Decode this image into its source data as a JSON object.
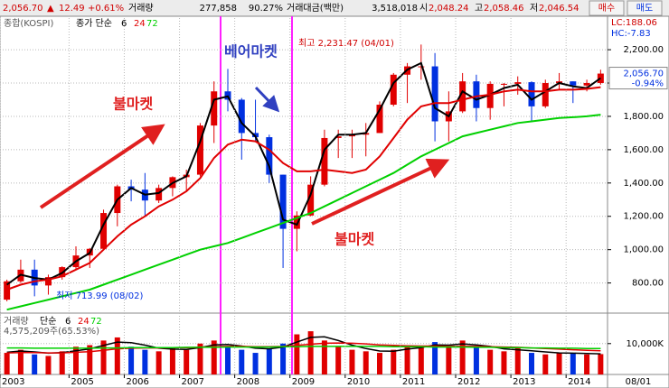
{
  "toolbar": {
    "price": "2,056.70",
    "arrow": "▲",
    "change": "12.49",
    "change_pct": "+0.61%",
    "volume_label": "거래량",
    "volume": "277,858",
    "volume_pct": "90.27%",
    "amount_label": "거래대금(백만)",
    "amount": "3,518,018",
    "open_label": "시",
    "open": "2,048.24",
    "high_label": "고",
    "high": "2,058.46",
    "low_label": "저",
    "low": "2,046.54",
    "buy": "매수",
    "sell": "매도"
  },
  "side": {
    "lc": "LC:188.06",
    "hc": "HC:-7.83",
    "last": "2,056.70",
    "last_pct": "-0.94%",
    "date": "08/01"
  },
  "annotations": {
    "bull1": "불마켓",
    "bear": "베어마켓",
    "bull2": "불마켓",
    "max": "최고 2,231.47 (04/01)",
    "min": "최저 713.99 (08/02)"
  },
  "chart_data": [
    {
      "type": "candlestick",
      "title": "종합(KOSPI)",
      "ma_label": "종가 단순",
      "up_color": "#e00000",
      "down_color": "#0030e0",
      "categories": [
        "2003",
        null,
        null,
        null,
        null,
        "2005",
        null,
        null,
        null,
        "2006",
        null,
        null,
        null,
        "2007",
        null,
        null,
        null,
        "2008",
        null,
        null,
        null,
        "2009",
        null,
        null,
        null,
        "2010",
        null,
        null,
        null,
        "2011",
        null,
        null,
        null,
        "2012",
        null,
        null,
        null,
        "2013",
        null,
        null,
        null,
        "2014",
        null,
        null
      ],
      "open": [
        700,
        810,
        880,
        785,
        835,
        895,
        965,
        1005,
        1220,
        1380,
        1360,
        1295,
        1370,
        1435,
        1450,
        1745,
        1950,
        1900,
        1700,
        1675,
        1450,
        1125,
        1205,
        1390,
        1670,
        1680,
        1690,
        1700,
        1870,
        2050,
        2100,
        2100,
        1770,
        1830,
        2010,
        1850,
        1995,
        1995,
        2005,
        1860,
        2000,
        2010,
        1985,
        2000
      ],
      "high": [
        820,
        940,
        940,
        850,
        900,
        1020,
        1010,
        1240,
        1390,
        1420,
        1460,
        1390,
        1440,
        1480,
        1760,
        2010,
        2085,
        1910,
        1900,
        1690,
        1450,
        1230,
        1440,
        1720,
        1720,
        1720,
        1760,
        1890,
        2060,
        2120,
        2231,
        2180,
        1950,
        2060,
        2050,
        2010,
        2000,
        2040,
        2010,
        2020,
        2060,
        2010,
        2020,
        2080
      ],
      "low": [
        690,
        800,
        720,
        730,
        820,
        880,
        890,
        1000,
        1140,
        1290,
        1200,
        1280,
        1320,
        1350,
        1440,
        1640,
        1830,
        1540,
        1650,
        1400,
        890,
        990,
        1200,
        1380,
        1550,
        1550,
        1560,
        1700,
        1860,
        1880,
        2020,
        1650,
        1650,
        1820,
        1770,
        1780,
        1860,
        1930,
        1770,
        1850,
        1960,
        1880,
        1950,
        1990
      ],
      "close": [
        810,
        880,
        785,
        835,
        895,
        965,
        1005,
        1220,
        1380,
        1360,
        1295,
        1370,
        1435,
        1450,
        1745,
        1950,
        1900,
        1700,
        1675,
        1450,
        1125,
        1205,
        1390,
        1670,
        1680,
        1690,
        1700,
        1870,
        2050,
        2100,
        2100,
        1770,
        1830,
        2010,
        1850,
        1995,
        1995,
        2005,
        1860,
        2000,
        2010,
        1985,
        2000,
        2056.7
      ],
      "series": [
        {
          "name": "6",
          "color": "#000000",
          "values": [
            790,
            850,
            830,
            820,
            860,
            930,
            980,
            1150,
            1300,
            1370,
            1330,
            1340,
            1400,
            1440,
            1650,
            1900,
            1920,
            1760,
            1680,
            1500,
            1180,
            1150,
            1330,
            1600,
            1690,
            1690,
            1700,
            1840,
            2000,
            2080,
            2120,
            1850,
            1800,
            1950,
            1900,
            1930,
            1970,
            1990,
            1900,
            1950,
            2000,
            1980,
            1970,
            2030
          ]
        },
        {
          "name": "24",
          "color": "#e00000",
          "values": [
            760,
            790,
            810,
            820,
            840,
            880,
            920,
            1000,
            1080,
            1150,
            1200,
            1260,
            1300,
            1350,
            1430,
            1550,
            1630,
            1660,
            1650,
            1600,
            1520,
            1470,
            1470,
            1480,
            1470,
            1460,
            1480,
            1560,
            1670,
            1780,
            1860,
            1880,
            1880,
            1900,
            1920,
            1930,
            1950,
            1960,
            1950,
            1950,
            1960,
            1960,
            1965,
            1975
          ]
        },
        {
          "name": "72",
          "color": "#00d000",
          "values": [
            640,
            660,
            680,
            700,
            720,
            740,
            760,
            790,
            820,
            850,
            880,
            910,
            940,
            970,
            1000,
            1020,
            1040,
            1070,
            1100,
            1130,
            1160,
            1190,
            1220,
            1260,
            1300,
            1340,
            1380,
            1420,
            1460,
            1510,
            1560,
            1600,
            1640,
            1680,
            1700,
            1720,
            1740,
            1760,
            1770,
            1780,
            1790,
            1795,
            1800,
            1810
          ]
        }
      ],
      "ylim": [
        630,
        2390
      ],
      "yticks": [
        {
          "value": 800,
          "label": "800.00"
        },
        {
          "value": 1000,
          "label": "1,000.00"
        },
        {
          "value": 1200,
          "label": "1,200.00"
        },
        {
          "value": 1400,
          "label": "1,400.00"
        },
        {
          "value": 1600,
          "label": "1,600.00"
        },
        {
          "value": 1800,
          "label": "1,800.00"
        },
        {
          "value": 2000,
          "label": "2,000.00"
        },
        {
          "value": 2200,
          "label": "2,200.00"
        }
      ],
      "grid": true
    },
    {
      "type": "bar",
      "title": "거래량",
      "ma_label": "단순",
      "info": "4,575,209주(65.53%)",
      "values": [
        7000,
        8000,
        6500,
        6000,
        7500,
        9000,
        9500,
        11000,
        12000,
        9000,
        8000,
        7500,
        8500,
        8000,
        10000,
        11000,
        9000,
        8000,
        7000,
        8500,
        10000,
        13000,
        14000,
        11000,
        9000,
        8000,
        7500,
        7000,
        8000,
        9500,
        9000,
        10500,
        9000,
        11000,
        9000,
        8000,
        7500,
        8500,
        7000,
        6500,
        7000,
        6800,
        6500,
        6600
      ],
      "series": [
        {
          "name": "6",
          "color": "#000000",
          "values": [
            7200,
            7600,
            7300,
            6900,
            7100,
            7700,
            8300,
            9400,
            10500,
            10300,
            9500,
            8500,
            8200,
            8100,
            8700,
            9600,
            9700,
            9200,
            8500,
            8300,
            8900,
            10500,
            12000,
            12200,
            11000,
            9500,
            8400,
            7600,
            7500,
            8200,
            8700,
            9600,
            9500,
            9900,
            9600,
            9100,
            8300,
            8000,
            7700,
            7300,
            7000,
            6900,
            6800,
            6700
          ]
        },
        {
          "name": "24",
          "color": "#e00000",
          "values": [
            7000,
            7100,
            7100,
            7000,
            7000,
            7200,
            7400,
            7800,
            8300,
            8500,
            8600,
            8600,
            8700,
            8700,
            8800,
            9000,
            9100,
            9100,
            9000,
            9000,
            9100,
            9400,
            9800,
            10100,
            10200,
            10100,
            9900,
            9600,
            9400,
            9300,
            9200,
            9200,
            9100,
            9100,
            9100,
            9000,
            8900,
            8800,
            8600,
            8400,
            8200,
            8000,
            7800,
            7700
          ]
        },
        {
          "name": "72",
          "color": "#00d000",
          "values": [
            8600,
            8600,
            8500,
            8500,
            8500,
            8500,
            8500,
            8600,
            8600,
            8700,
            8700,
            8700,
            8700,
            8800,
            8800,
            8800,
            8900,
            8900,
            8900,
            8900,
            9000,
            9000,
            9100,
            9100,
            9100,
            9100,
            9100,
            9100,
            9000,
            9000,
            9000,
            8900,
            8900,
            8900,
            8800,
            8800,
            8700,
            8700,
            8600,
            8600,
            8500,
            8500,
            8400,
            8400
          ]
        }
      ],
      "ylim": [
        0,
        19000
      ],
      "yticks": [
        {
          "value": 10000,
          "label": "10,000K"
        }
      ]
    }
  ]
}
